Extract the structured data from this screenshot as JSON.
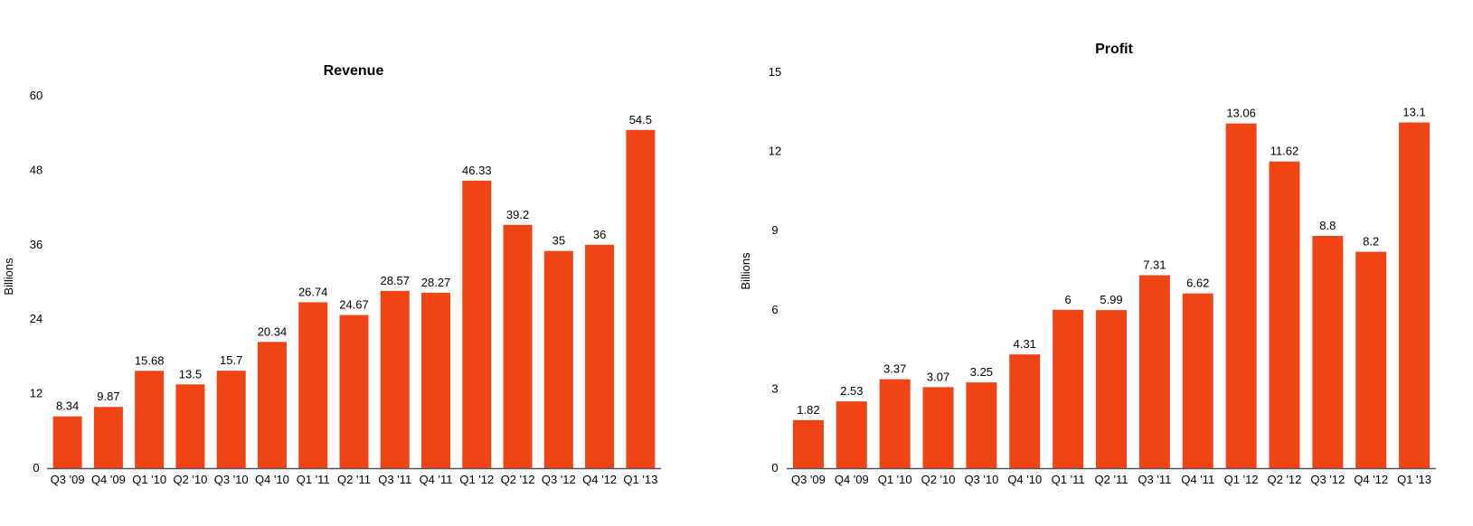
{
  "chart_data": [
    {
      "type": "bar",
      "title": "Revenue",
      "xlabel": "",
      "ylabel": "Billions",
      "ylim": [
        0,
        60
      ],
      "yticks": [
        0,
        12,
        24,
        36,
        48,
        60
      ],
      "grid": false,
      "categories": [
        "Q3 '09",
        "Q4 '09",
        "Q1 '10",
        "Q2 '10",
        "Q3 '10",
        "Q4 '10",
        "Q1 '11",
        "Q2 '11",
        "Q3 '11",
        "Q4 '11",
        "Q1 '12",
        "Q2 '12",
        "Q3 '12",
        "Q4 '12",
        "Q1 '13"
      ],
      "values": [
        8.34,
        9.87,
        15.68,
        13.5,
        15.7,
        20.34,
        26.74,
        24.67,
        28.57,
        28.27,
        46.33,
        39.2,
        35,
        36,
        54.5
      ],
      "data_labels": [
        "8.34",
        "9.87",
        "15.68",
        "13.5",
        "15.7",
        "20.34",
        "26.74",
        "24.67",
        "28.57",
        "28.27",
        "46.33",
        "39.2",
        "35",
        "36",
        "54.5"
      ],
      "bar_color": "#f04414"
    },
    {
      "type": "bar",
      "title": "Profit",
      "xlabel": "",
      "ylabel": "Billions",
      "ylim": [
        0,
        15
      ],
      "yticks": [
        0,
        3,
        6,
        9,
        12,
        15
      ],
      "grid": false,
      "categories": [
        "Q3 '09",
        "Q4 '09",
        "Q1 '10",
        "Q2 '10",
        "Q3 '10",
        "Q4 '10",
        "Q1 '11",
        "Q2 '11",
        "Q3 '11",
        "Q4 '11",
        "Q1 '12",
        "Q2 '12",
        "Q3 '12",
        "Q4 '12",
        "Q1 '13"
      ],
      "values": [
        1.82,
        2.53,
        3.37,
        3.07,
        3.25,
        4.31,
        6,
        5.99,
        7.31,
        6.62,
        13.06,
        11.62,
        8.8,
        8.2,
        13.1
      ],
      "data_labels": [
        "1.82",
        "2.53",
        "3.37",
        "3.07",
        "3.25",
        "4.31",
        "6",
        "5.99",
        "7.31",
        "6.62",
        "13.06",
        "11.62",
        "8.8",
        "8.2",
        "13.1"
      ],
      "bar_color": "#f04414"
    }
  ]
}
